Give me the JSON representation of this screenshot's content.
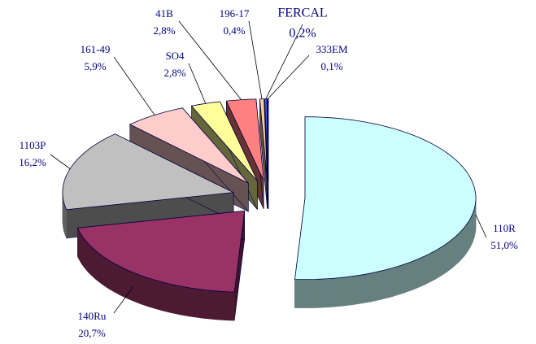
{
  "chart_data": {
    "type": "pie3d",
    "categories": [
      "110R",
      "140Ru",
      "1103P",
      "161-49",
      "SO4",
      "41B",
      "196-17",
      "FERCAL",
      "333EM"
    ],
    "values": [
      51.0,
      20.7,
      16.2,
      5.9,
      2.8,
      2.8,
      0.4,
      0.2,
      0.1
    ],
    "value_labels": [
      "51,0%",
      "20,7%",
      "16,2%",
      "5,9%",
      "2,8%",
      "2,8%",
      "0,4%",
      "0,2%",
      "0,1%"
    ],
    "colors": [
      "#ccffff",
      "#993366",
      "#c0c0c0",
      "#ffcccc",
      "#ffff99",
      "#ff8080",
      "#ffcc99",
      "#3366ff",
      "#000080"
    ]
  }
}
